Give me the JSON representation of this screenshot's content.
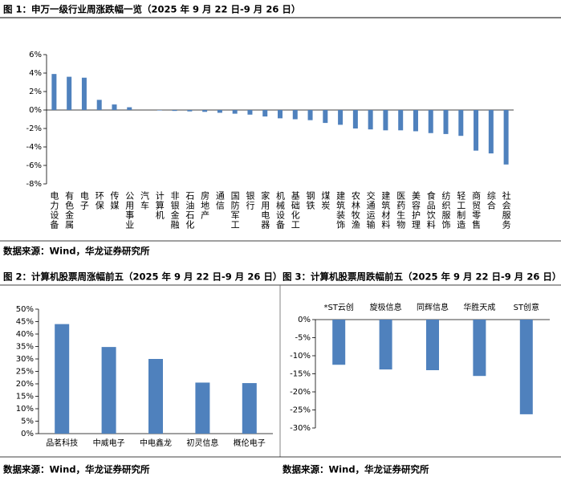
{
  "chart_data": [
    {
      "type": "bar",
      "title": "图 1：申万一级行业周涨跌幅一览（2025 年 9 月 22 日-9 月 26 日）",
      "categories": [
        "电力设备",
        "有色金属",
        "电子",
        "环保",
        "传媒",
        "公用事业",
        "汽车",
        "计算机",
        "非银金融",
        "石油石化",
        "房地产",
        "通信",
        "国防军工",
        "银行",
        "家用电器",
        "机械设备",
        "基础化工",
        "钢铁",
        "煤炭",
        "建筑装饰",
        "农林牧渔",
        "交通运输",
        "建筑材料",
        "医药生物",
        "美容护理",
        "食品饮料",
        "纺织服饰",
        "轻工制造",
        "商贸零售",
        "综合",
        "社会服务"
      ],
      "values": [
        3.9,
        3.6,
        3.5,
        1.1,
        0.6,
        0.3,
        0.0,
        -0.05,
        -0.1,
        -0.15,
        -0.2,
        -0.3,
        -0.4,
        -0.5,
        -0.7,
        -0.9,
        -1.0,
        -1.1,
        -1.4,
        -1.6,
        -2.0,
        -2.1,
        -2.2,
        -2.2,
        -2.3,
        -2.5,
        -2.6,
        -2.8,
        -4.4,
        -4.7,
        -5.9
      ],
      "color": "#4f81bd",
      "ylim": [
        -8,
        6
      ],
      "yticks": [
        {
          "value": 6,
          "label": "6%"
        },
        {
          "value": 4,
          "label": "4%"
        },
        {
          "value": 2,
          "label": "2%"
        },
        {
          "value": 0,
          "label": "0%"
        },
        {
          "value": -2,
          "label": "-2%"
        },
        {
          "value": -4,
          "label": "-4%"
        },
        {
          "value": -6,
          "label": "-6%"
        },
        {
          "value": -8,
          "label": "-8%"
        }
      ],
      "source": "数据来源：Wind，华龙证券研究所"
    },
    {
      "type": "bar",
      "title": "图 2：计算机股票周涨幅前五（2025 年 9 月 22 日-9 月 26 日）",
      "categories": [
        "品茗科技",
        "中威电子",
        "中电鑫龙",
        "初灵信息",
        "概伦电子"
      ],
      "values": [
        44,
        34.8,
        30,
        20.5,
        20.3
      ],
      "color": "#4f81bd",
      "ylim": [
        0,
        50
      ],
      "yticks": [
        {
          "value": 0,
          "label": "0%"
        },
        {
          "value": 5,
          "label": "5%"
        },
        {
          "value": 10,
          "label": "10%"
        },
        {
          "value": 15,
          "label": "15%"
        },
        {
          "value": 20,
          "label": "20%"
        },
        {
          "value": 25,
          "label": "25%"
        },
        {
          "value": 30,
          "label": "30%"
        },
        {
          "value": 35,
          "label": "35%"
        },
        {
          "value": 40,
          "label": "40%"
        },
        {
          "value": 45,
          "label": "45%"
        },
        {
          "value": 50,
          "label": "50%"
        }
      ],
      "source": "数据来源：Wind，华龙证券研究所"
    },
    {
      "type": "bar",
      "title": "图 3：计算机股票周跌幅前五（2025 年 9 月 22 日-9 月 26 日）",
      "categories": [
        "*ST云创",
        "旋极信息",
        "同辉信息",
        "华胜天成",
        "ST创意"
      ],
      "values": [
        -12.5,
        -13.8,
        -14,
        -15.6,
        -26.2
      ],
      "color": "#4f81bd",
      "ylim": [
        -30,
        0
      ],
      "yticks": [
        {
          "value": 0,
          "label": "0%"
        },
        {
          "value": -5,
          "label": "-5%"
        },
        {
          "value": -10,
          "label": "-10%"
        },
        {
          "value": -15,
          "label": "-15%"
        },
        {
          "value": -20,
          "label": "-20%"
        },
        {
          "value": -25,
          "label": "-25%"
        },
        {
          "value": -30,
          "label": "-30%"
        }
      ],
      "source": "数据来源：Wind，华龙证券研究所"
    }
  ]
}
